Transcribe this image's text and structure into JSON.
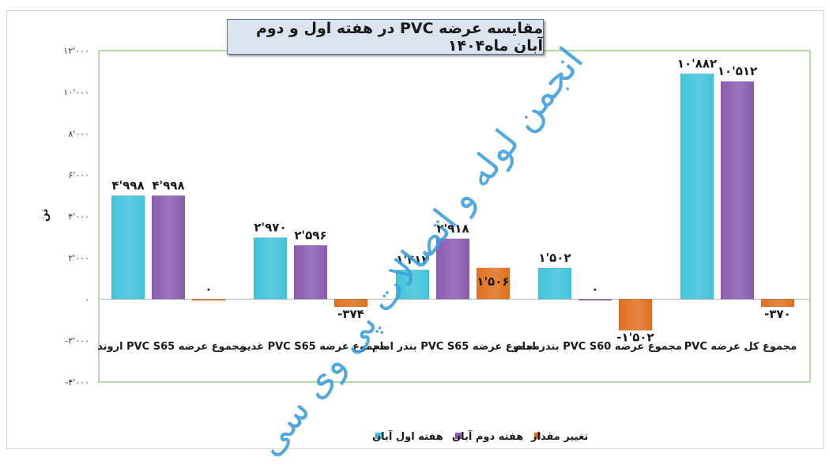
{
  "watermark": "انجمن لوله و اتصالات پی وی سی",
  "chart_data": {
    "type": "bar",
    "title": "مقایسه عرضه PVC در هفته اول و دوم آبان ماه۱۴۰۴",
    "ylabel": "تن",
    "ylim": [
      -4000,
      12000
    ],
    "yticks": [
      -4000,
      -2000,
      0,
      2000,
      4000,
      6000,
      8000,
      10000,
      12000
    ],
    "ytick_labels": [
      "-۴'۰۰۰",
      "-۲'۰۰۰",
      "۰",
      "۲'۰۰۰",
      "۴'۰۰۰",
      "۶'۰۰۰",
      "۸'۰۰۰",
      "۱۰'۰۰۰",
      "۱۲'۰۰۰"
    ],
    "categories": [
      "مجموع عرضه PVC S65 اروند",
      "مجموع عرضه PVC S65 غدیر",
      "مجموع عرضه PVC S65 بندر امام",
      "مجموع عرضه PVC S60 بندر امام",
      "مجموع کل عرضه PVC"
    ],
    "series": [
      {
        "name": "هفته اول آبان",
        "color": "#3fc3dc",
        "values": [
          4998,
          2970,
          1412,
          1502,
          10882
        ],
        "labels": [
          "۴'۹۹۸",
          "۲'۹۷۰",
          "۱'۴۱۲",
          "۱'۵۰۲",
          "۱۰'۸۸۲"
        ]
      },
      {
        "name": "هفته دوم آبان",
        "color": "#8a5bb0",
        "values": [
          4998,
          2596,
          2918,
          0,
          10512
        ],
        "labels": [
          "۴'۹۹۸",
          "۲'۵۹۶",
          "۲'۹۱۸",
          "۰",
          "۱۰'۵۱۲"
        ]
      },
      {
        "name": "تغییر مقدار",
        "color": "#e0701e",
        "values": [
          0,
          -374,
          1506,
          -1502,
          -370
        ],
        "labels": [
          "۰",
          "-۳۷۴",
          "۱'۵۰۶",
          "-۱'۵۰۲",
          "-۳۷۰"
        ]
      }
    ],
    "legend": "bottom",
    "grid": false
  }
}
